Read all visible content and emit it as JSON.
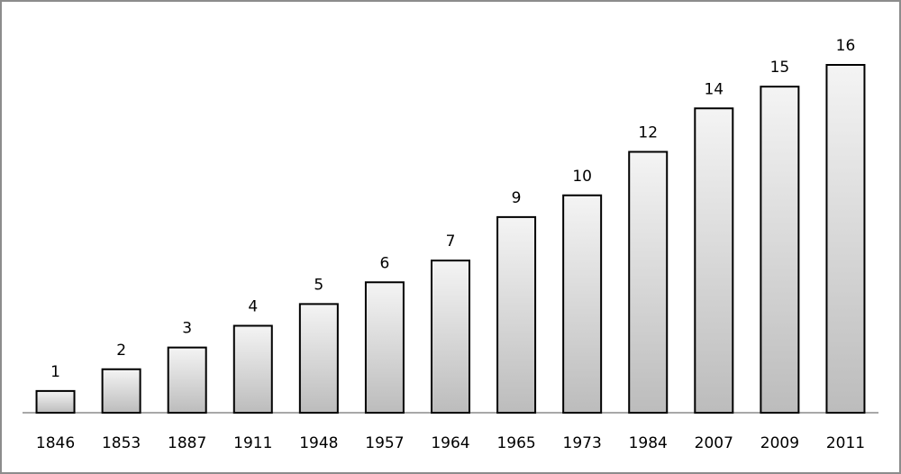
{
  "chart_data": {
    "type": "bar",
    "categories": [
      "1846",
      "1853",
      "1887",
      "1911",
      "1948",
      "1957",
      "1964",
      "1965",
      "1973",
      "1984",
      "2007",
      "2009",
      "2011"
    ],
    "values": [
      1,
      2,
      3,
      4,
      5,
      6,
      7,
      9,
      10,
      12,
      14,
      15,
      16
    ]
  }
}
